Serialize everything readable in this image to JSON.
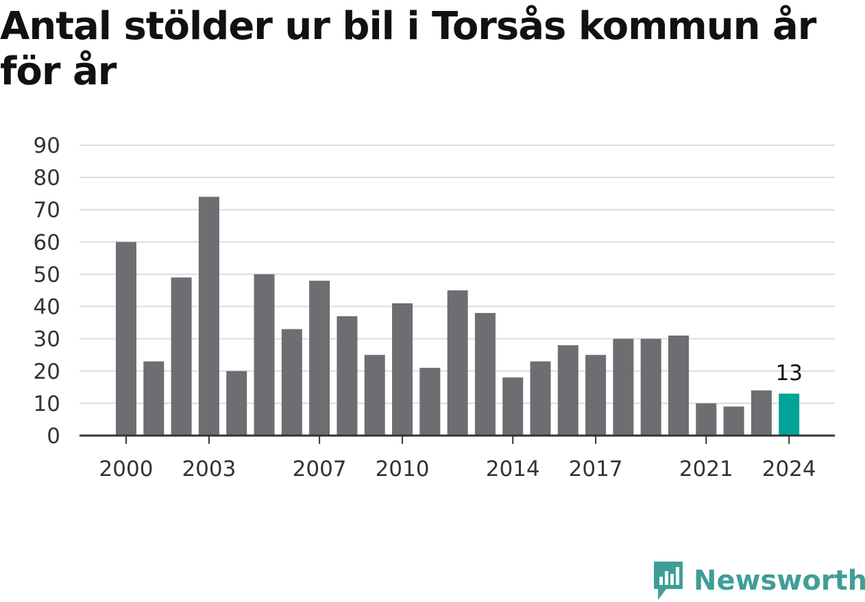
{
  "title": "Antal stölder ur bil i Torsås kommun år för år",
  "brand": {
    "name": "Newsworthy"
  },
  "colors": {
    "bar": "#6e6d72",
    "highlight": "#00a39a",
    "grid": "#dcdcdc",
    "axis": "#333333",
    "brand": "#3f9e97"
  },
  "chart_data": {
    "type": "bar",
    "title": "Antal stölder ur bil i Torsås kommun år för år",
    "xlabel": "",
    "ylabel": "",
    "categories": [
      "2000",
      "2001",
      "2002",
      "2003",
      "2004",
      "2005",
      "2006",
      "2007",
      "2008",
      "2009",
      "2010",
      "2011",
      "2012",
      "2013",
      "2014",
      "2015",
      "2016",
      "2017",
      "2018",
      "2019",
      "2020",
      "2021",
      "2022",
      "2023",
      "2024"
    ],
    "values": [
      60,
      23,
      49,
      74,
      20,
      50,
      33,
      48,
      37,
      25,
      41,
      21,
      45,
      38,
      18,
      23,
      28,
      25,
      30,
      30,
      31,
      10,
      9,
      14,
      13
    ],
    "highlight_category": "2024",
    "x_tick_labels": [
      "2000",
      "2003",
      "2007",
      "2010",
      "2014",
      "2017",
      "2021",
      "2024"
    ],
    "y_ticks": [
      0,
      10,
      20,
      30,
      40,
      50,
      60,
      70,
      80,
      90
    ],
    "ylim": [
      0,
      90
    ],
    "grid": true,
    "data_labels": [
      {
        "category": "2024",
        "text": "13"
      }
    ]
  }
}
